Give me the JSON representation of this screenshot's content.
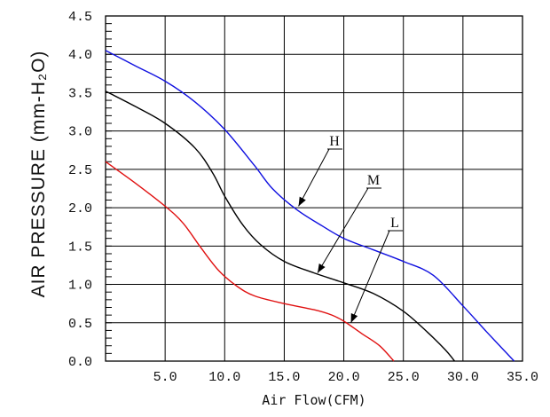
{
  "chart_data": {
    "type": "line",
    "title": "",
    "xlabel": "Air Flow(CFM)",
    "ylabel": "AIR PRESSURE (mm-H₂O)",
    "xlim": [
      0,
      35
    ],
    "ylim": [
      0,
      4.5
    ],
    "x_ticks": [
      5,
      10,
      15,
      20,
      25,
      30,
      35
    ],
    "x_tick_labels": [
      "5.0",
      "10.0",
      "15.0",
      "20.0",
      "25.0",
      "30.0",
      "35.0"
    ],
    "y_ticks": [
      0,
      0.5,
      1,
      1.5,
      2,
      2.5,
      3,
      3.5,
      4,
      4.5
    ],
    "y_tick_labels": [
      "0.0",
      "0.5",
      "1.0",
      "1.5",
      "2.0",
      "2.5",
      "3.0",
      "3.5",
      "4.0",
      "4.5"
    ],
    "grid": true,
    "series": [
      {
        "name": "H",
        "color": "#1010e0",
        "points": [
          [
            0,
            4.05
          ],
          [
            2.5,
            3.85
          ],
          [
            5,
            3.65
          ],
          [
            7.5,
            3.38
          ],
          [
            10,
            3.02
          ],
          [
            12.5,
            2.55
          ],
          [
            14,
            2.25
          ],
          [
            16,
            1.98
          ],
          [
            18,
            1.78
          ],
          [
            20,
            1.6
          ],
          [
            22.5,
            1.45
          ],
          [
            25,
            1.3
          ],
          [
            27.5,
            1.12
          ],
          [
            30,
            0.72
          ],
          [
            32,
            0.38
          ],
          [
            34.3,
            0.0
          ]
        ]
      },
      {
        "name": "M",
        "color": "#000000",
        "points": [
          [
            0,
            3.52
          ],
          [
            2.5,
            3.32
          ],
          [
            5,
            3.1
          ],
          [
            7.5,
            2.78
          ],
          [
            9,
            2.45
          ],
          [
            10,
            2.15
          ],
          [
            11.5,
            1.78
          ],
          [
            13,
            1.52
          ],
          [
            15,
            1.3
          ],
          [
            17.5,
            1.15
          ],
          [
            20,
            1.02
          ],
          [
            22.5,
            0.88
          ],
          [
            25,
            0.65
          ],
          [
            27,
            0.38
          ],
          [
            28.5,
            0.15
          ],
          [
            29.3,
            0.0
          ]
        ]
      },
      {
        "name": "L",
        "color": "#e01010",
        "points": [
          [
            0,
            2.6
          ],
          [
            2.5,
            2.32
          ],
          [
            5,
            2.02
          ],
          [
            6.5,
            1.8
          ],
          [
            8,
            1.48
          ],
          [
            9.5,
            1.18
          ],
          [
            11,
            0.98
          ],
          [
            12.5,
            0.85
          ],
          [
            15,
            0.75
          ],
          [
            17.5,
            0.67
          ],
          [
            19,
            0.6
          ],
          [
            20,
            0.52
          ],
          [
            21.5,
            0.36
          ],
          [
            23,
            0.2
          ],
          [
            24.2,
            0.0
          ]
        ]
      }
    ],
    "annotations": [
      {
        "text": "H",
        "series": "H",
        "points_to": [
          16.2,
          2.02
        ]
      },
      {
        "text": "M",
        "series": "M",
        "points_to": [
          17.8,
          1.15
        ]
      },
      {
        "text": "L",
        "series": "L",
        "points_to": [
          20.6,
          0.5
        ]
      }
    ]
  }
}
